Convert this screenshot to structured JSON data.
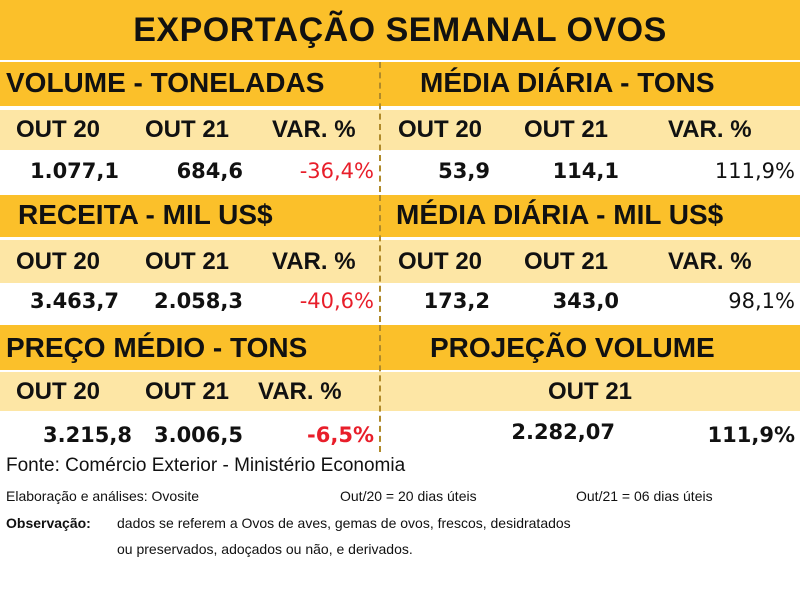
{
  "title": "EXPORTAÇÃO SEMANAL OVOS",
  "sections": {
    "volume": {
      "heading": "VOLUME - TONELADAS",
      "cols": [
        "OUT 20",
        "OUT 21",
        "VAR. %"
      ],
      "values": [
        "1.077,1",
        "684,6",
        "-36,4%"
      ]
    },
    "media_volume": {
      "heading": "MÉDIA DIÁRIA - TONS",
      "cols": [
        "OUT 20",
        "OUT 21",
        "VAR. %"
      ],
      "values": [
        "53,9",
        "114,1",
        "111,9%"
      ]
    },
    "receita": {
      "heading": "RECEITA - MIL US$",
      "cols": [
        "OUT 20",
        "OUT 21",
        "VAR. %"
      ],
      "values": [
        "3.463,7",
        "2.058,3",
        "-40,6%"
      ]
    },
    "media_receita": {
      "heading": "MÉDIA DIÁRIA - MIL US$",
      "cols": [
        "OUT 20",
        "OUT 21",
        "VAR. %"
      ],
      "values": [
        "173,2",
        "343,0",
        "98,1%"
      ]
    },
    "preco": {
      "heading": "PREÇO MÉDIO - TONS",
      "cols": [
        "OUT 20",
        "OUT 21",
        "VAR. %"
      ],
      "values": [
        "3.215,8",
        "3.006,5",
        "-6,5%"
      ]
    },
    "projecao": {
      "heading": "PROJEÇÃO VOLUME",
      "col": "OUT 21",
      "values": [
        "2.282,07",
        "111,9%"
      ]
    }
  },
  "footer": {
    "source": "Fonte: Comércio Exterior - Ministério Economia",
    "elaboracao": "Elaboração e análises: Ovosite",
    "out20_days": "Out/20 = 20 dias úteis",
    "out21_days": "Out/21 = 06 dias úteis",
    "obs_label": "Observação:",
    "obs_line1": "dados se referem a Ovos de aves, gemas de ovos, frescos, desidratados",
    "obs_line2": "ou preservados, adoçados ou não, e derivados."
  },
  "colors": {
    "band": "#fbc02a",
    "subheader": "#fde6a5",
    "negative": "#e81e2a"
  }
}
